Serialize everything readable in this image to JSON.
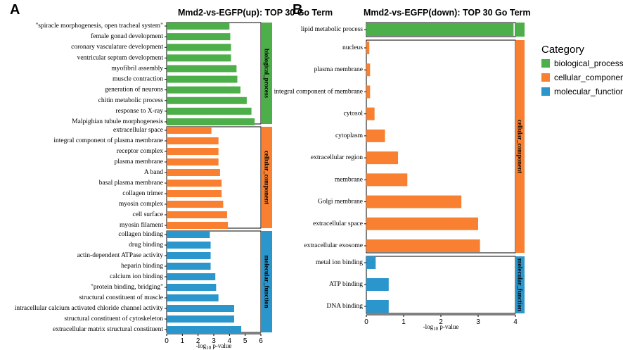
{
  "colors": {
    "biological_process": "#4DAF4A",
    "cellular_component": "#F88030",
    "molecular_function": "#2A96CC"
  },
  "legend": {
    "title": "Category",
    "items": [
      {
        "key": "biological_process",
        "label": "biological_process"
      },
      {
        "key": "cellular_component",
        "label": "cellular_component"
      },
      {
        "key": "molecular_function",
        "label": "molecular_function"
      }
    ]
  },
  "chart_data": [
    {
      "type": "bar",
      "orientation": "horizontal",
      "panel_label": "A",
      "title": "Mmd2-vs-EGFP(up): TOP 30 Go Term",
      "xlabel_prefix": "-log",
      "xlabel_sub": "10",
      "xlabel_suffix": " p-value",
      "xlim": [
        0,
        6
      ],
      "xticks": [
        0,
        1,
        2,
        3,
        4,
        5,
        6
      ],
      "groups": [
        {
          "category": "biological_process",
          "strip_label": "biological_process",
          "terms": [
            {
              "label": "\"spiracle morphogenesis, open tracheal system\"",
              "value": 4.0
            },
            {
              "label": "female gonad development",
              "value": 4.05
            },
            {
              "label": "coronary vasculature development",
              "value": 4.1
            },
            {
              "label": "ventricular septum development",
              "value": 4.1
            },
            {
              "label": "myofibril assembly",
              "value": 4.45
            },
            {
              "label": "muscle contraction",
              "value": 4.5
            },
            {
              "label": "generation of neurons",
              "value": 4.7
            },
            {
              "label": "chitin metabolic process",
              "value": 5.1
            },
            {
              "label": "response to X-ray",
              "value": 5.4
            },
            {
              "label": "Malpighian tubule morphogenesis",
              "value": 5.6
            }
          ]
        },
        {
          "category": "cellular_component",
          "strip_label": "cellular_component",
          "terms": [
            {
              "label": "extracellular space",
              "value": 2.85
            },
            {
              "label": "integral component of plasma membrane",
              "value": 3.3
            },
            {
              "label": "receptor complex",
              "value": 3.3
            },
            {
              "label": "plasma membrane",
              "value": 3.3
            },
            {
              "label": "A band",
              "value": 3.4
            },
            {
              "label": "basal plasma membrane",
              "value": 3.5
            },
            {
              "label": "collagen trimer",
              "value": 3.5
            },
            {
              "label": "myosin complex",
              "value": 3.6
            },
            {
              "label": "cell surface",
              "value": 3.85
            },
            {
              "label": "myosin filament",
              "value": 3.9
            }
          ]
        },
        {
          "category": "molecular_function",
          "strip_label": "molecular_function",
          "terms": [
            {
              "label": "collagen binding",
              "value": 2.75
            },
            {
              "label": "drug binding",
              "value": 2.8
            },
            {
              "label": "actin-dependent ATPase activity",
              "value": 2.8
            },
            {
              "label": "heparin binding",
              "value": 2.8
            },
            {
              "label": "calcium ion binding",
              "value": 3.1
            },
            {
              "label": "\"protein binding, bridging\"",
              "value": 3.15
            },
            {
              "label": "structural constituent of muscle",
              "value": 3.3
            },
            {
              "label": "intracellular calcium activated chloride channel activity",
              "value": 4.3
            },
            {
              "label": "structural constituent of cytoskeleton",
              "value": 4.3
            },
            {
              "label": "extracellular matrix structural constituent",
              "value": 4.75
            }
          ]
        }
      ]
    },
    {
      "type": "bar",
      "orientation": "horizontal",
      "panel_label": "B",
      "title": "Mmd2-vs-EGFP(down): TOP 30 Go Term",
      "xlabel_prefix": "-log",
      "xlabel_sub": "10",
      "xlabel_suffix": " p-value",
      "xlim": [
        0,
        4
      ],
      "xticks": [
        0,
        1,
        2,
        3,
        4
      ],
      "groups": [
        {
          "category": "biological_process",
          "strip_label": "",
          "terms": [
            {
              "label": "lipid metabolic process",
              "value": 3.95
            }
          ]
        },
        {
          "category": "cellular_component",
          "strip_label": "cellular_component",
          "terms": [
            {
              "label": "nucleus",
              "value": 0.08
            },
            {
              "label": "plasma membrane",
              "value": 0.1
            },
            {
              "label": "integral component of membrane",
              "value": 0.1
            },
            {
              "label": "cytosol",
              "value": 0.22
            },
            {
              "label": "cytoplasm",
              "value": 0.5
            },
            {
              "label": "extracellular region",
              "value": 0.85
            },
            {
              "label": "membrane",
              "value": 1.1
            },
            {
              "label": "Golgi membrane",
              "value": 2.55
            },
            {
              "label": "extracellular space",
              "value": 3.0
            },
            {
              "label": "extracellular exosome",
              "value": 3.05
            }
          ]
        },
        {
          "category": "molecular_function",
          "strip_label": "molecular_function",
          "terms": [
            {
              "label": "metal ion binding",
              "value": 0.25
            },
            {
              "label": "ATP binding",
              "value": 0.6
            },
            {
              "label": "DNA binding",
              "value": 0.6
            }
          ]
        }
      ]
    }
  ]
}
